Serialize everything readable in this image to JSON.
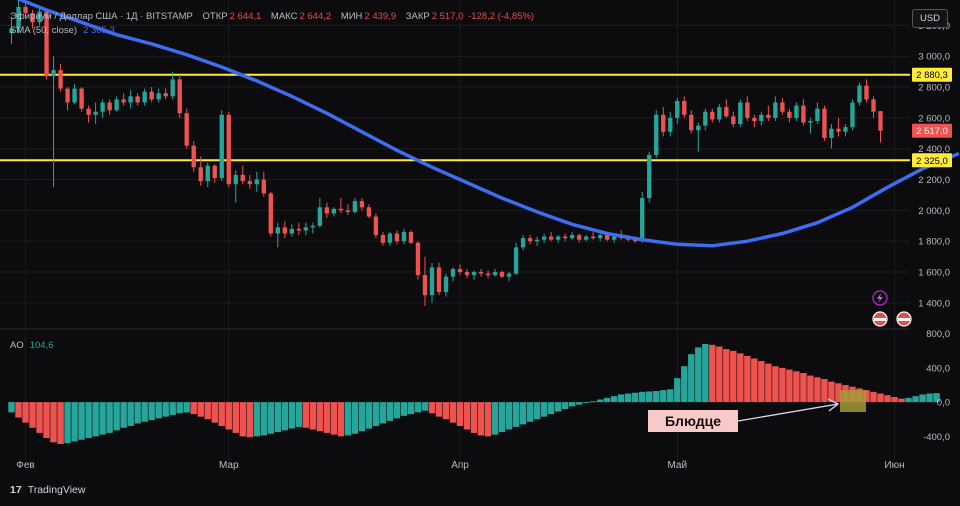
{
  "header": {
    "symbol": "Эфириум / Доллар США · 1Д · BITSTAMP",
    "open_label": "ОТКР",
    "open": "2 644,1",
    "high_label": "МАКС",
    "high": "2 644,2",
    "low_label": "МИН",
    "low": "2 439,9",
    "close_label": "ЗАКР",
    "close": "2 517,0",
    "change": "-128,2 (-4,85%)"
  },
  "sma_legend": {
    "label": "SMA (50, close)",
    "value": "2 365,3"
  },
  "ao_legend": {
    "label": "AO",
    "value": "104,6"
  },
  "currency_button": "USD",
  "branding": {
    "logo": "17",
    "name": "TradingView"
  },
  "annotation": {
    "text": "Блюдце"
  },
  "colors": {
    "up": "#26a69a",
    "down": "#ef5350",
    "sma": "#3d6ef2",
    "level": "#ffeb3b",
    "note_bg": "#f7c9c9",
    "saucer": "#a59a3a"
  },
  "chart_data": {
    "type": "candlestick",
    "price_axis": {
      "ylim": [
        1250,
        3300
      ],
      "ticks": [
        1400,
        1600,
        1800,
        2000,
        2200,
        2400,
        2600,
        2800,
        3000,
        3200
      ],
      "tick_labels": [
        "1 400,0",
        "1 600,0",
        "1 800,0",
        "2 000,0",
        "2 200,0",
        "2 400,0",
        "2 600,0",
        "2 800,0",
        "3 000,0",
        "3 200,0"
      ]
    },
    "time_axis": {
      "labels": [
        "Фев",
        "Мар",
        "Апр",
        "Май",
        "Июн"
      ],
      "label_index": [
        2,
        31,
        64,
        95,
        126
      ]
    },
    "levels": [
      {
        "value": 2880.3,
        "label": "2 880,3"
      },
      {
        "value": 2325.0,
        "label": "2 325,0"
      }
    ],
    "last_price": {
      "value": 2517.0,
      "label": "2 517,0"
    },
    "candles": [
      [
        3150,
        3250,
        3080,
        3180
      ],
      [
        3180,
        3380,
        3150,
        3320
      ],
      [
        3320,
        3380,
        3250,
        3280
      ],
      [
        3280,
        3300,
        3180,
        3220
      ],
      [
        3220,
        3330,
        3200,
        3290
      ],
      [
        3290,
        3300,
        2850,
        2870
      ],
      [
        2870,
        3000,
        2150,
        2910
      ],
      [
        2910,
        2950,
        2770,
        2790
      ],
      [
        2790,
        2800,
        2650,
        2700
      ],
      [
        2700,
        2820,
        2690,
        2790
      ],
      [
        2790,
        2800,
        2640,
        2660
      ],
      [
        2660,
        2680,
        2570,
        2620
      ],
      [
        2620,
        2700,
        2560,
        2640
      ],
      [
        2640,
        2720,
        2600,
        2700
      ],
      [
        2700,
        2720,
        2620,
        2650
      ],
      [
        2650,
        2740,
        2640,
        2720
      ],
      [
        2720,
        2760,
        2680,
        2700
      ],
      [
        2700,
        2780,
        2660,
        2740
      ],
      [
        2740,
        2760,
        2680,
        2700
      ],
      [
        2700,
        2790,
        2680,
        2770
      ],
      [
        2770,
        2800,
        2700,
        2720
      ],
      [
        2720,
        2790,
        2700,
        2760
      ],
      [
        2760,
        2790,
        2720,
        2740
      ],
      [
        2740,
        2900,
        2720,
        2850
      ],
      [
        2850,
        2880,
        2600,
        2630
      ],
      [
        2630,
        2660,
        2400,
        2420
      ],
      [
        2420,
        2450,
        2250,
        2280
      ],
      [
        2280,
        2350,
        2160,
        2190
      ],
      [
        2190,
        2310,
        2150,
        2290
      ],
      [
        2290,
        2300,
        2180,
        2210
      ],
      [
        2210,
        2650,
        2190,
        2620
      ],
      [
        2620,
        2640,
        2150,
        2170
      ],
      [
        2170,
        2260,
        2050,
        2230
      ],
      [
        2230,
        2290,
        2170,
        2190
      ],
      [
        2190,
        2230,
        2140,
        2170
      ],
      [
        2170,
        2250,
        2120,
        2200
      ],
      [
        2200,
        2250,
        2090,
        2110
      ],
      [
        2110,
        2120,
        1830,
        1850
      ],
      [
        1850,
        1920,
        1760,
        1890
      ],
      [
        1890,
        1930,
        1820,
        1850
      ],
      [
        1850,
        1910,
        1830,
        1880
      ],
      [
        1880,
        1920,
        1840,
        1870
      ],
      [
        1870,
        1920,
        1840,
        1890
      ],
      [
        1890,
        1920,
        1850,
        1900
      ],
      [
        1900,
        2080,
        1890,
        2020
      ],
      [
        2020,
        2050,
        1950,
        1980
      ],
      [
        1980,
        2020,
        1960,
        2010
      ],
      [
        2010,
        2080,
        1980,
        2000
      ],
      [
        2000,
        2040,
        1970,
        1990
      ],
      [
        1990,
        2080,
        1980,
        2060
      ],
      [
        2060,
        2080,
        2000,
        2020
      ],
      [
        2020,
        2040,
        1950,
        1960
      ],
      [
        1960,
        1980,
        1820,
        1840
      ],
      [
        1840,
        1860,
        1770,
        1790
      ],
      [
        1790,
        1860,
        1770,
        1850
      ],
      [
        1850,
        1870,
        1780,
        1800
      ],
      [
        1800,
        1880,
        1780,
        1860
      ],
      [
        1860,
        1870,
        1780,
        1790
      ],
      [
        1790,
        1800,
        1550,
        1580
      ],
      [
        1580,
        1700,
        1380,
        1450
      ],
      [
        1450,
        1660,
        1400,
        1630
      ],
      [
        1630,
        1660,
        1450,
        1470
      ],
      [
        1470,
        1590,
        1440,
        1570
      ],
      [
        1570,
        1630,
        1540,
        1620
      ],
      [
        1620,
        1650,
        1580,
        1600
      ],
      [
        1600,
        1620,
        1560,
        1580
      ],
      [
        1580,
        1610,
        1550,
        1600
      ],
      [
        1600,
        1620,
        1570,
        1590
      ],
      [
        1590,
        1610,
        1560,
        1580
      ],
      [
        1580,
        1620,
        1570,
        1600
      ],
      [
        1600,
        1610,
        1560,
        1570
      ],
      [
        1570,
        1600,
        1540,
        1590
      ],
      [
        1590,
        1790,
        1580,
        1760
      ],
      [
        1760,
        1840,
        1740,
        1820
      ],
      [
        1820,
        1840,
        1780,
        1800
      ],
      [
        1800,
        1830,
        1770,
        1810
      ],
      [
        1810,
        1850,
        1790,
        1830
      ],
      [
        1830,
        1860,
        1800,
        1810
      ],
      [
        1810,
        1840,
        1790,
        1830
      ],
      [
        1830,
        1850,
        1800,
        1820
      ],
      [
        1820,
        1860,
        1810,
        1840
      ],
      [
        1840,
        1850,
        1790,
        1810
      ],
      [
        1810,
        1840,
        1800,
        1830
      ],
      [
        1830,
        1860,
        1810,
        1820
      ],
      [
        1820,
        1850,
        1800,
        1840
      ],
      [
        1840,
        1850,
        1800,
        1810
      ],
      [
        1810,
        1840,
        1790,
        1830
      ],
      [
        1830,
        1870,
        1810,
        1820
      ],
      [
        1820,
        1840,
        1800,
        1810
      ],
      [
        1810,
        1830,
        1790,
        1800
      ],
      [
        1800,
        2120,
        1790,
        2080
      ],
      [
        2080,
        2380,
        2050,
        2360
      ],
      [
        2360,
        2650,
        2340,
        2620
      ],
      [
        2620,
        2670,
        2480,
        2510
      ],
      [
        2510,
        2640,
        2480,
        2600
      ],
      [
        2600,
        2730,
        2560,
        2710
      ],
      [
        2710,
        2740,
        2600,
        2620
      ],
      [
        2620,
        2650,
        2500,
        2520
      ],
      [
        2520,
        2570,
        2380,
        2550
      ],
      [
        2550,
        2660,
        2520,
        2640
      ],
      [
        2640,
        2660,
        2570,
        2590
      ],
      [
        2590,
        2690,
        2570,
        2670
      ],
      [
        2670,
        2720,
        2600,
        2610
      ],
      [
        2610,
        2640,
        2540,
        2560
      ],
      [
        2560,
        2720,
        2540,
        2700
      ],
      [
        2700,
        2740,
        2580,
        2600
      ],
      [
        2600,
        2620,
        2540,
        2580
      ],
      [
        2580,
        2640,
        2550,
        2620
      ],
      [
        2620,
        2680,
        2580,
        2600
      ],
      [
        2600,
        2740,
        2580,
        2700
      ],
      [
        2700,
        2730,
        2620,
        2640
      ],
      [
        2640,
        2660,
        2570,
        2600
      ],
      [
        2600,
        2700,
        2580,
        2680
      ],
      [
        2680,
        2720,
        2550,
        2570
      ],
      [
        2570,
        2600,
        2500,
        2580
      ],
      [
        2580,
        2700,
        2560,
        2660
      ],
      [
        2660,
        2680,
        2450,
        2470
      ],
      [
        2470,
        2560,
        2400,
        2530
      ],
      [
        2530,
        2600,
        2480,
        2510
      ],
      [
        2510,
        2560,
        2480,
        2540
      ],
      [
        2540,
        2720,
        2520,
        2700
      ],
      [
        2700,
        2830,
        2680,
        2810
      ],
      [
        2810,
        2850,
        2700,
        2720
      ],
      [
        2720,
        2740,
        2600,
        2640
      ],
      [
        2644.1,
        2644.2,
        2439.9,
        2517.0
      ]
    ],
    "sma50": [
      [
        0,
        3390
      ],
      [
        5,
        3300
      ],
      [
        10,
        3220
      ],
      [
        15,
        3140
      ],
      [
        20,
        3080
      ],
      [
        25,
        3010
      ],
      [
        30,
        2930
      ],
      [
        35,
        2840
      ],
      [
        40,
        2740
      ],
      [
        45,
        2630
      ],
      [
        50,
        2510
      ],
      [
        55,
        2390
      ],
      [
        60,
        2280
      ],
      [
        65,
        2180
      ],
      [
        70,
        2080
      ],
      [
        75,
        1990
      ],
      [
        80,
        1910
      ],
      [
        85,
        1850
      ],
      [
        90,
        1810
      ],
      [
        95,
        1780
      ],
      [
        100,
        1770
      ],
      [
        105,
        1800
      ],
      [
        110,
        1850
      ],
      [
        115,
        1920
      ],
      [
        120,
        2020
      ],
      [
        125,
        2150
      ],
      [
        130,
        2270
      ],
      [
        135,
        2365
      ]
    ],
    "ao": {
      "ylim": [
        -560,
        820
      ],
      "ticks": [
        800,
        400,
        0,
        -400
      ],
      "tick_labels": [
        "800,0",
        "400,0",
        "0,0",
        "-400,0"
      ],
      "values": [
        -120,
        -180,
        -240,
        -300,
        -360,
        -420,
        -470,
        -490,
        -480,
        -460,
        -440,
        -420,
        -400,
        -380,
        -360,
        -330,
        -300,
        -280,
        -250,
        -230,
        -210,
        -190,
        -170,
        -150,
        -130,
        -120,
        -140,
        -170,
        -200,
        -240,
        -280,
        -320,
        -360,
        -400,
        -410,
        -400,
        -390,
        -370,
        -350,
        -330,
        -310,
        -290,
        -300,
        -320,
        -340,
        -360,
        -380,
        -400,
        -390,
        -370,
        -340,
        -310,
        -280,
        -250,
        -220,
        -190,
        -160,
        -140,
        -120,
        -100,
        -130,
        -170,
        -200,
        -240,
        -280,
        -320,
        -360,
        -390,
        -400,
        -380,
        -350,
        -320,
        -290,
        -260,
        -230,
        -200,
        -170,
        -140,
        -110,
        -80,
        -50,
        -30,
        -10,
        10,
        30,
        50,
        70,
        90,
        100,
        110,
        120,
        125,
        130,
        140,
        150,
        280,
        420,
        560,
        640,
        680,
        670,
        650,
        620,
        600,
        570,
        540,
        510,
        480,
        450,
        420,
        400,
        380,
        360,
        340,
        310,
        290,
        270,
        240,
        220,
        200,
        180,
        160,
        140,
        120,
        100,
        80,
        60,
        40,
        50,
        70,
        90,
        100,
        105
      ]
    }
  }
}
